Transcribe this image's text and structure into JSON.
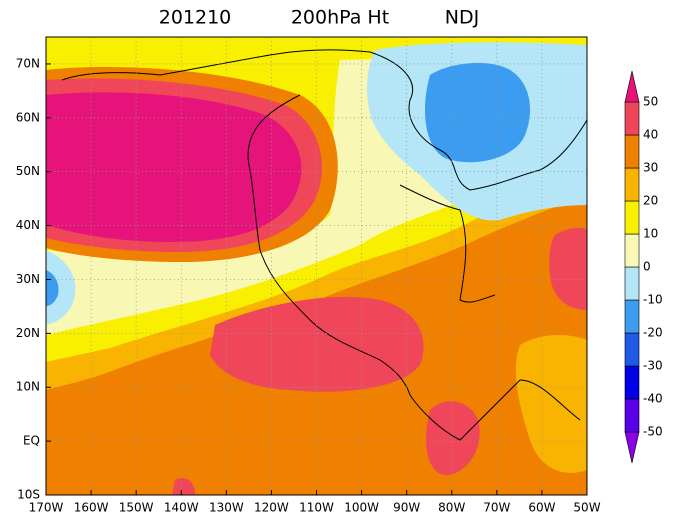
{
  "title": {
    "date": "201210",
    "field": "200hPa Ht",
    "season": "NDJ"
  },
  "map": {
    "lon_range": [
      -170,
      -50
    ],
    "lat_range": [
      -10,
      75
    ],
    "lon_ticks": [
      {
        "value": -170,
        "label": "170W"
      },
      {
        "value": -160,
        "label": "160W"
      },
      {
        "value": -150,
        "label": "150W"
      },
      {
        "value": -140,
        "label": "140W"
      },
      {
        "value": -130,
        "label": "130W"
      },
      {
        "value": -120,
        "label": "120W"
      },
      {
        "value": -110,
        "label": "110W"
      },
      {
        "value": -100,
        "label": "100W"
      },
      {
        "value": -90,
        "label": "90W"
      },
      {
        "value": -80,
        "label": "80W"
      },
      {
        "value": -70,
        "label": "70W"
      },
      {
        "value": -60,
        "label": "60W"
      },
      {
        "value": -50,
        "label": "50W"
      }
    ],
    "lat_ticks": [
      {
        "value": -10,
        "label": "10S"
      },
      {
        "value": 0,
        "label": "EQ"
      },
      {
        "value": 10,
        "label": "10N"
      },
      {
        "value": 20,
        "label": "20N"
      },
      {
        "value": 30,
        "label": "30N"
      },
      {
        "value": 40,
        "label": "40N"
      },
      {
        "value": 50,
        "label": "50N"
      },
      {
        "value": 60,
        "label": "60N"
      },
      {
        "value": 70,
        "label": "70N"
      }
    ]
  },
  "colorbar": {
    "levels": [
      -50,
      -40,
      -30,
      -20,
      -10,
      0,
      10,
      20,
      30,
      40,
      50
    ],
    "colors": [
      "#8c00e6",
      "#5a00e6",
      "#0000e6",
      "#1e5ae6",
      "#3c9cf0",
      "#b4e6f8",
      "#f8f8b4",
      "#f8f000",
      "#f8b400",
      "#f08000",
      "#f0465a",
      "#e6147a"
    ]
  }
}
